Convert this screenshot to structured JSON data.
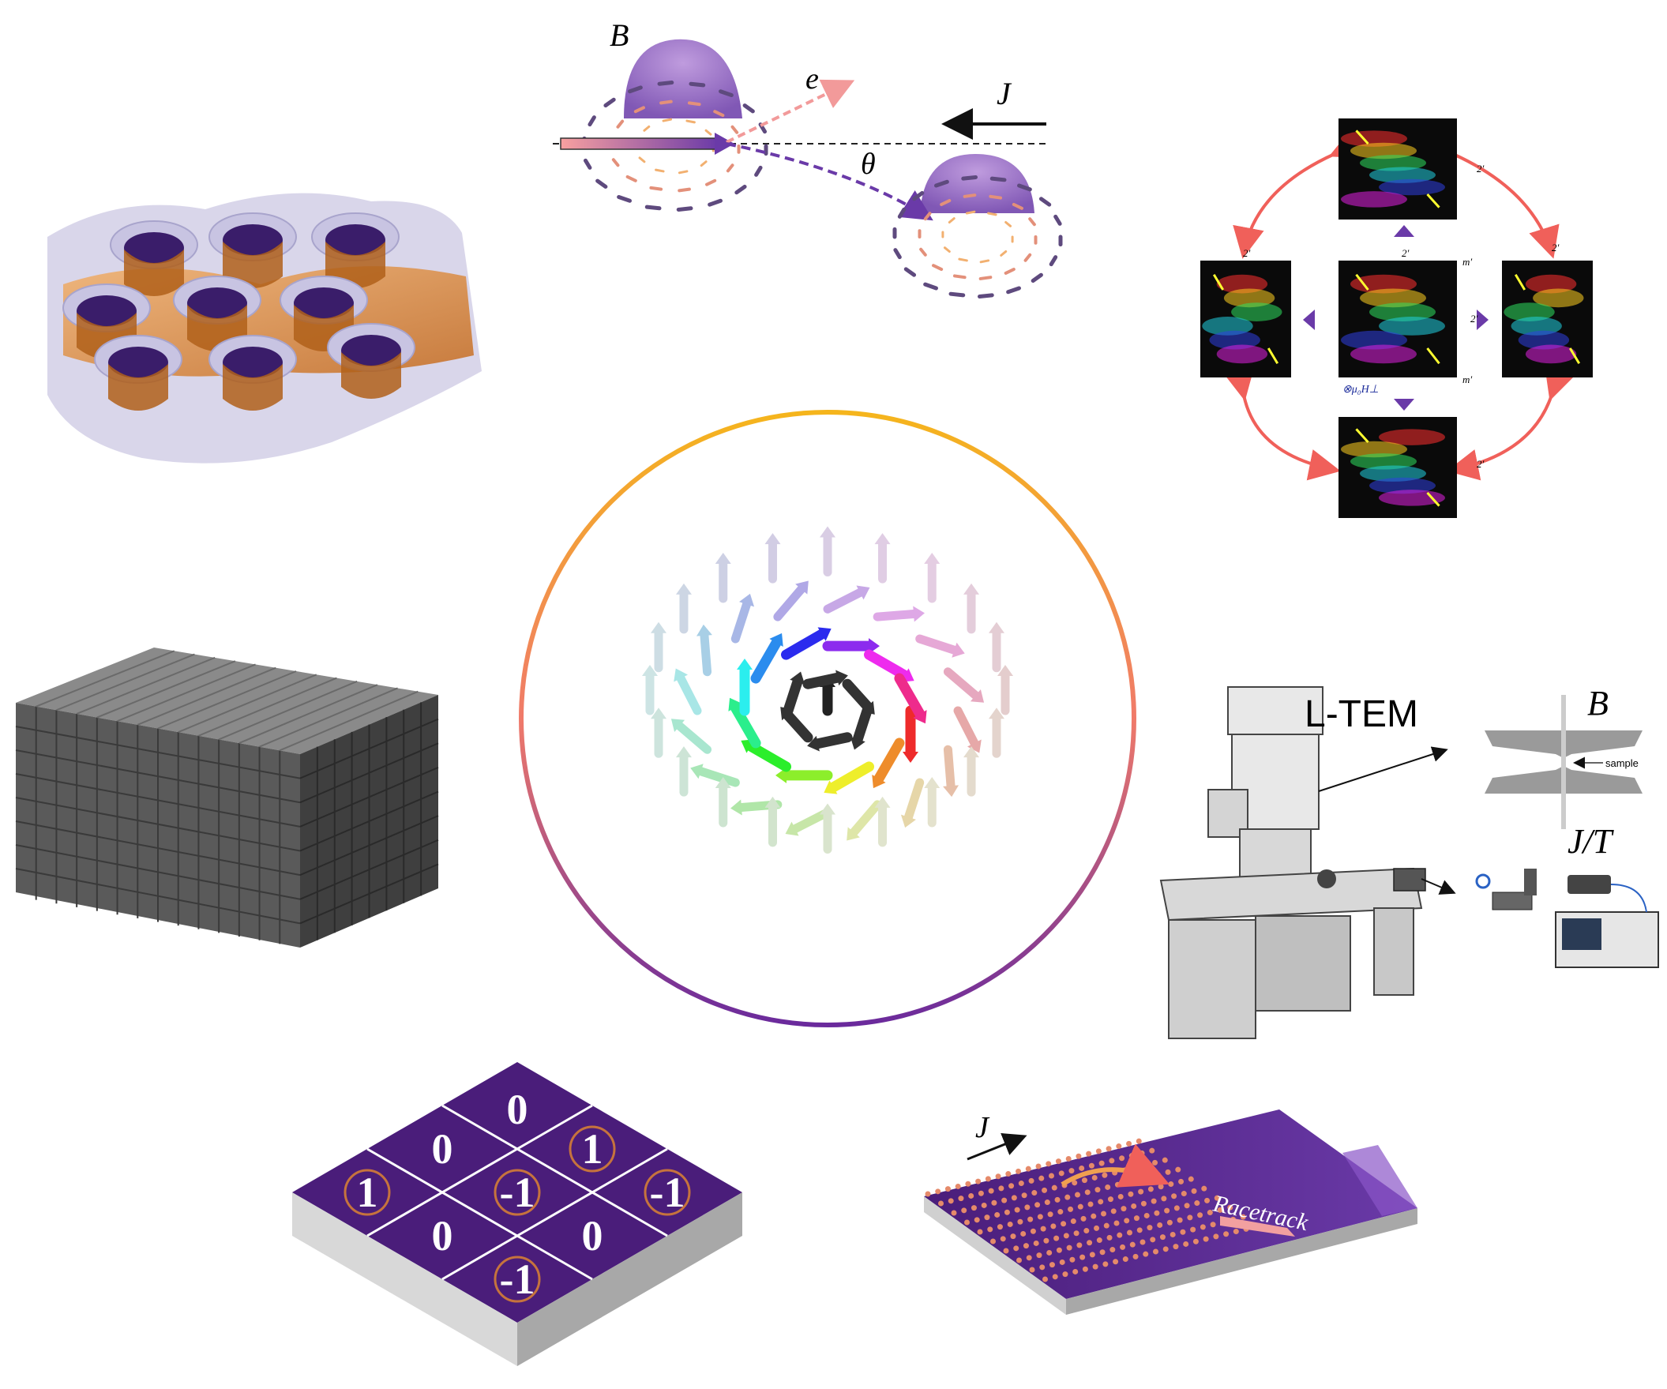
{
  "figure": {
    "skyrmion_hall": {
      "b_label": "B",
      "e_label": "e",
      "j_label": "J",
      "theta_label": "θ"
    },
    "symmetry_panel": {
      "sym_2": "2′",
      "sym_m": "m′",
      "field_label": "⊗μ₀H⊥"
    },
    "ltem_setup": {
      "instrument_label": "L-TEM",
      "b_label": "B",
      "jt_label": "J/T",
      "sample_label": "sample"
    },
    "logic_grid": {
      "cells": [
        "0",
        "0",
        "1",
        "1",
        "-1",
        "-1",
        "0",
        "0",
        "-1"
      ]
    },
    "racetrack": {
      "j_label": "J",
      "track_label": "Racetrack"
    },
    "colors": {
      "ring_top": "#f5b51c",
      "ring_mid": "#f07a6a",
      "ring_bottom": "#6a2a9c",
      "purple_dark": "#4a1d7a",
      "purple_mid": "#6a3aa8",
      "orange": "#e58a2e",
      "gray_block": "#5a5a5a"
    }
  }
}
